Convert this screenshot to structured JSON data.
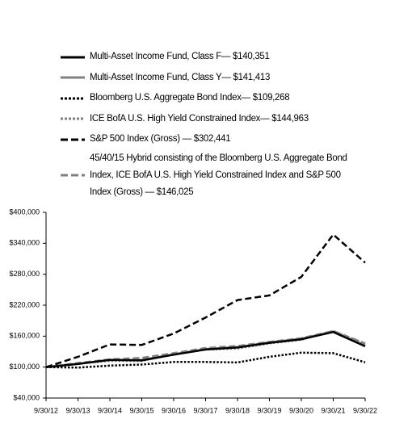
{
  "chart_data": {
    "type": "line",
    "categories": [
      "9/30/12",
      "9/30/13",
      "9/30/14",
      "9/30/15",
      "9/30/16",
      "9/30/17",
      "9/30/18",
      "9/30/19",
      "9/30/20",
      "9/30/21",
      "9/30/22"
    ],
    "series": [
      {
        "name": "Multi-Asset Income Fund, Class F— $140,351",
        "color": "#000000",
        "style": "solid",
        "values": [
          100000,
          106000,
          114000,
          113000,
          124000,
          134000,
          138000,
          147000,
          154000,
          168000,
          140351
        ]
      },
      {
        "name": "Multi-Asset Income Fund, Class Y— $141,413",
        "color": "#808080",
        "style": "solid",
        "values": [
          100000,
          106000,
          114000,
          114000,
          125000,
          135000,
          139000,
          148000,
          155000,
          169000,
          141413
        ]
      },
      {
        "name": "Bloomberg U.S. Aggregate Bond Index— $109,268",
        "color": "#000000",
        "style": "dotted",
        "values": [
          100000,
          99000,
          103000,
          105000,
          110000,
          110000,
          109000,
          120000,
          128000,
          127000,
          109268
        ]
      },
      {
        "name": "ICE BofA U.S. High Yield Constrained Index— $144,963",
        "color": "#808080",
        "style": "dotted",
        "values": [
          100000,
          107000,
          112000,
          112000,
          125000,
          134000,
          136000,
          146000,
          153000,
          170000,
          144963
        ]
      },
      {
        "name": "S&P 500 Index (Gross) — $302,441",
        "color": "#000000",
        "style": "dashed",
        "values": [
          100000,
          120000,
          144000,
          143000,
          165000,
          196000,
          230000,
          239000,
          275000,
          357000,
          302441
        ]
      },
      {
        "name": "45/40/15 Hybrid consisting of the Bloomberg U.S. Aggregate Bond Index, ICE BofA U.S. High Yield Constrained Index and S&P 500 Index (Gross) — $146,025",
        "color": "#808080",
        "style": "dashed",
        "values": [
          100000,
          108000,
          115000,
          118000,
          127000,
          137000,
          141000,
          149000,
          156000,
          170000,
          146025
        ]
      }
    ],
    "ylim": [
      40000,
      400000
    ],
    "yticks": [
      {
        "value": 40000,
        "label": "$40,000"
      },
      {
        "value": 100000,
        "label": "$100,000"
      },
      {
        "value": 160000,
        "label": "$160,000"
      },
      {
        "value": 220000,
        "label": "$220,000"
      },
      {
        "value": 280000,
        "label": "$280,000"
      },
      {
        "value": 340000,
        "label": "$340,000"
      },
      {
        "value": 400000,
        "label": "$400,000"
      }
    ]
  }
}
